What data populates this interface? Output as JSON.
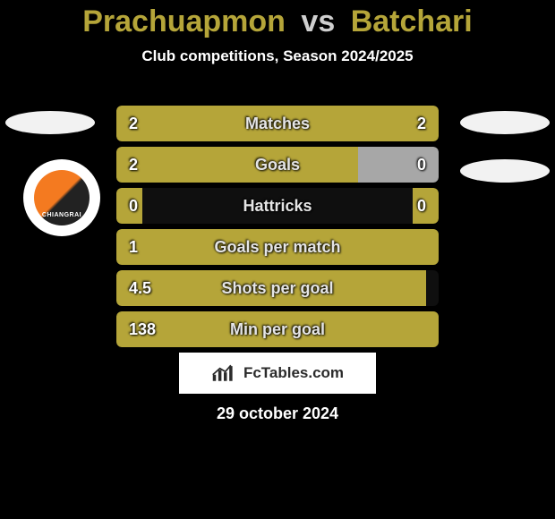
{
  "background_color": "#000000",
  "accent_color": "#b5a539",
  "text_color": "#ffffff",
  "title": {
    "left": "Prachuapmon",
    "vs": "vs",
    "right": "Batchari"
  },
  "subtitle": "Club competitions, Season 2024/2025",
  "rows": [
    {
      "label": "Matches",
      "left": "2",
      "right": "2",
      "pctLeft": 50,
      "pctRight": 50,
      "colorLeft": "#b5a539",
      "colorRight": "#b5a539"
    },
    {
      "label": "Goals",
      "left": "2",
      "right": "0",
      "pctLeft": 75,
      "pctRight": 25,
      "colorLeft": "#b5a539",
      "colorRight": "#a7a7a7"
    },
    {
      "label": "Hattricks",
      "left": "0",
      "right": "0",
      "pctLeft": 8,
      "pctRight": 8,
      "colorLeft": "#b5a539",
      "colorRight": "#b5a539"
    },
    {
      "label": "Goals per match",
      "left": "1",
      "right": "",
      "pctLeft": 100,
      "pctRight": 0,
      "colorLeft": "#b5a539",
      "colorRight": "#b5a539"
    },
    {
      "label": "Shots per goal",
      "left": "4.5",
      "right": "",
      "pctLeft": 96,
      "pctRight": 0,
      "colorLeft": "#b5a539",
      "colorRight": "#b5a539"
    },
    {
      "label": "Min per goal",
      "left": "138",
      "right": "",
      "pctLeft": 100,
      "pctRight": 0,
      "colorLeft": "#b5a539",
      "colorRight": "#b5a539"
    }
  ],
  "footer_brand": "FcTables.com",
  "date": "29 october 2024",
  "badge_text": "CHIANGRAI"
}
